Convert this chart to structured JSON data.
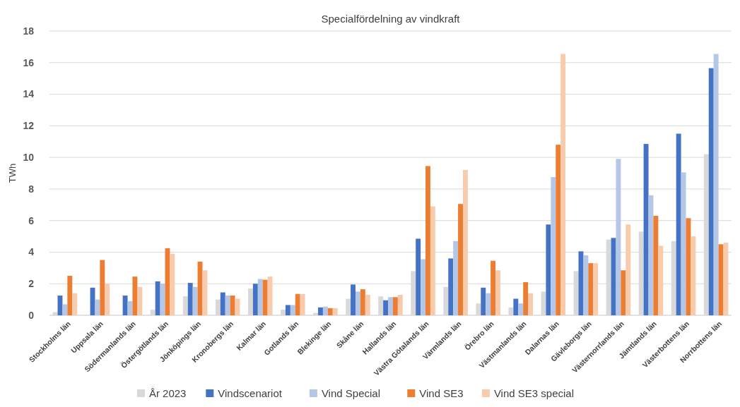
{
  "chart_data": {
    "type": "bar",
    "title": "Specialfördelning av vindkraft",
    "ylabel": "TWh",
    "categories": [
      "Stockholms län",
      "Uppsala län",
      "Södermanlands län",
      "Östergötlands län",
      "Jönköpings län",
      "Kronobergs län",
      "Kalmar län",
      "Gotlands län",
      "Blekinge län",
      "Skåne län",
      "Hallands län",
      "Västra Götalands län",
      "Värmlands län",
      "Örebro län",
      "Västmanlands län",
      "Dalarnas län",
      "Gävleborgs län",
      "Västernorrlands län",
      "Jämtlands län",
      "Västerbottens län",
      "Norrbottens län"
    ],
    "series": [
      {
        "name": "År 2023",
        "color": "#d9d9d9",
        "values": [
          0.2,
          0,
          0,
          0.35,
          1.2,
          1.0,
          1.7,
          0.35,
          0.15,
          1.05,
          1.2,
          2.8,
          1.8,
          0.75,
          0.5,
          1.5,
          2.8,
          4.8,
          5.3,
          4.7,
          10.2
        ]
      },
      {
        "name": "Vindscenariot",
        "color": "#4472c4",
        "values": [
          1.25,
          1.75,
          1.25,
          2.15,
          2.05,
          1.45,
          2.0,
          0.65,
          0.5,
          1.95,
          0.95,
          4.85,
          3.6,
          1.75,
          1.05,
          5.75,
          4.05,
          4.9,
          10.85,
          11.5,
          15.65
        ]
      },
      {
        "name": "Vind Special",
        "color": "#b4c7e7",
        "values": [
          0.7,
          1.0,
          0.9,
          2.0,
          1.8,
          1.25,
          2.3,
          0.65,
          0.55,
          1.5,
          1.15,
          3.55,
          4.7,
          1.4,
          0.75,
          8.75,
          3.8,
          9.9,
          7.6,
          9.05,
          16.55
        ]
      },
      {
        "name": "Vind SE3",
        "color": "#ed7d31",
        "values": [
          2.5,
          3.5,
          2.45,
          4.25,
          3.4,
          1.25,
          2.25,
          1.35,
          0.45,
          1.65,
          1.15,
          9.45,
          7.05,
          3.45,
          2.1,
          10.8,
          3.3,
          2.85,
          6.3,
          6.15,
          4.5
        ]
      },
      {
        "name": "Vind SE3 special",
        "color": "#f8cbad",
        "values": [
          1.4,
          2.0,
          1.8,
          3.9,
          2.85,
          1.05,
          2.45,
          1.35,
          0.45,
          1.3,
          1.3,
          6.9,
          9.2,
          2.85,
          1.4,
          16.55,
          3.3,
          5.75,
          4.4,
          5.0,
          4.6
        ]
      }
    ],
    "ylim": [
      0,
      18
    ],
    "yticks": [
      0,
      2,
      4,
      6,
      8,
      10,
      12,
      14,
      16,
      18
    ],
    "grid": "y",
    "legend": "bottom"
  }
}
